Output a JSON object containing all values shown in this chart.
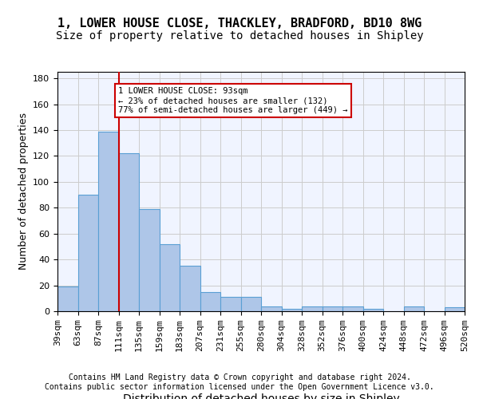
{
  "title1": "1, LOWER HOUSE CLOSE, THACKLEY, BRADFORD, BD10 8WG",
  "title2": "Size of property relative to detached houses in Shipley",
  "xlabel": "Distribution of detached houses by size in Shipley",
  "ylabel": "Number of detached properties",
  "bar_values": [
    19,
    90,
    139,
    122,
    79,
    52,
    35,
    15,
    11,
    11,
    4,
    2,
    4,
    4,
    4,
    2,
    0,
    4,
    0,
    3
  ],
  "bar_labels": [
    "39sqm",
    "63sqm",
    "87sqm",
    "111sqm",
    "135sqm",
    "159sqm",
    "183sqm",
    "207sqm",
    "231sqm",
    "255sqm",
    "280sqm",
    "304sqm",
    "328sqm",
    "352sqm",
    "376sqm",
    "400sqm",
    "424sqm",
    "448sqm",
    "472sqm",
    "496sqm",
    "520sqm"
  ],
  "bar_color": "#aec6e8",
  "bar_edge_color": "#5a9fd4",
  "property_line_x": 2,
  "property_size": "93sqm",
  "annotation_text": "1 LOWER HOUSE CLOSE: 93sqm\n← 23% of detached houses are smaller (132)\n77% of semi-detached houses are larger (449) →",
  "annotation_box_color": "#ffffff",
  "annotation_box_edge": "#cc0000",
  "red_line_color": "#cc0000",
  "ylim": [
    0,
    185
  ],
  "yticks": [
    0,
    20,
    40,
    60,
    80,
    100,
    120,
    140,
    160,
    180
  ],
  "grid_color": "#cccccc",
  "bg_color": "#f0f4ff",
  "footer1": "Contains HM Land Registry data © Crown copyright and database right 2024.",
  "footer2": "Contains public sector information licensed under the Open Government Licence v3.0.",
  "title_fontsize": 11,
  "subtitle_fontsize": 10,
  "axis_label_fontsize": 9,
  "tick_fontsize": 8
}
